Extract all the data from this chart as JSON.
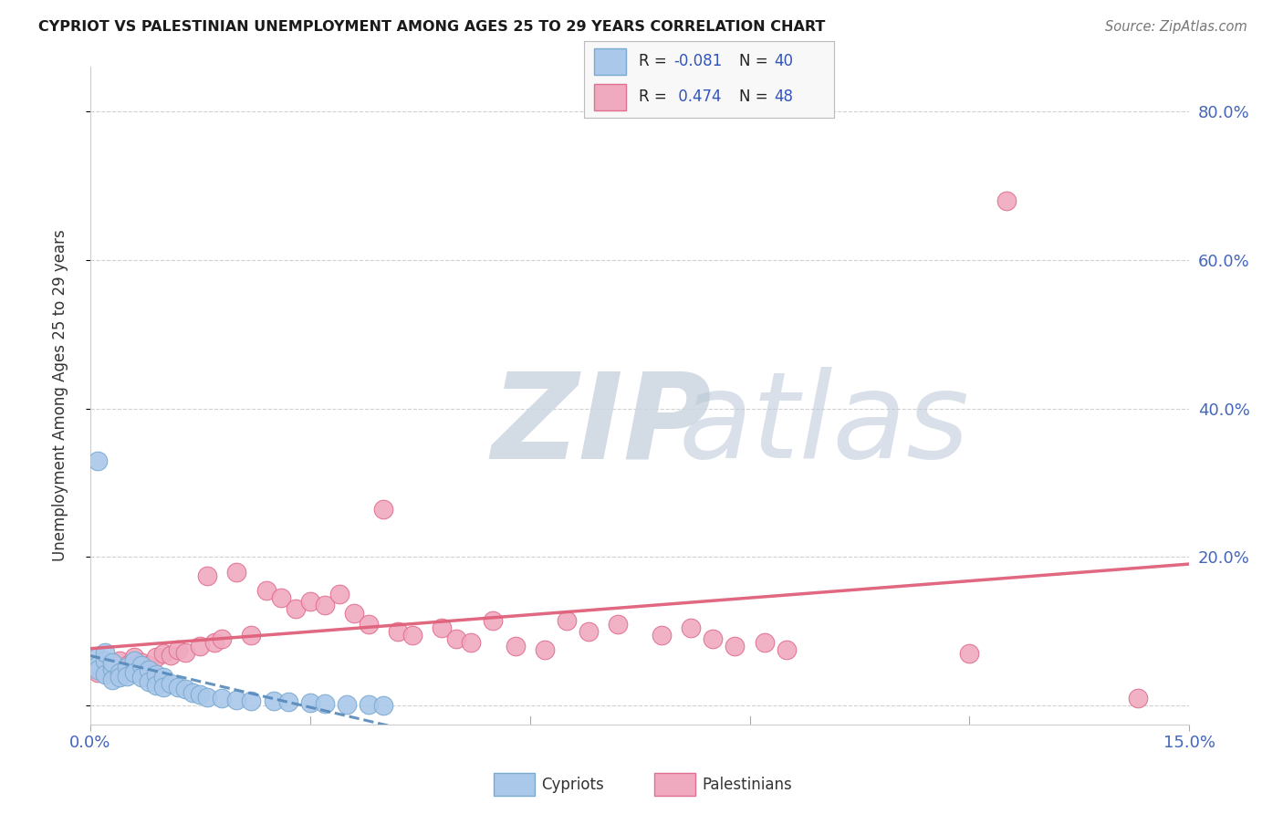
{
  "title": "CYPRIOT VS PALESTINIAN UNEMPLOYMENT AMONG AGES 25 TO 29 YEARS CORRELATION CHART",
  "source": "Source: ZipAtlas.com",
  "ylabel": "Unemployment Among Ages 25 to 29 years",
  "x_range": [
    0.0,
    0.15
  ],
  "y_range": [
    -0.025,
    0.86
  ],
  "y_ticks": [
    0.0,
    0.2,
    0.4,
    0.6,
    0.8
  ],
  "y_tick_labels": [
    "",
    "20.0%",
    "40.0%",
    "60.0%",
    "80.0%"
  ],
  "x_tick_labels": [
    "0.0%",
    "15.0%"
  ],
  "cypriot_face": "#aac8ea",
  "cypriot_edge": "#7aaad0",
  "cypriot_line": "#5588bb",
  "palestinian_face": "#f0aabf",
  "palestinian_edge": "#e07090",
  "palestinian_line": "#e0607a",
  "bg_color": "#ffffff",
  "grid_color": "#cccccc",
  "title_color": "#1a1a1a",
  "tick_color": "#4466bb",
  "ylabel_color": "#333333",
  "legend_text_color": "#3355bb",
  "watermark_zip_color": "#ccd5e0",
  "watermark_atlas_color": "#bbc8d8",
  "cyp_x": [
    0.001,
    0.001,
    0.001,
    0.002,
    0.002,
    0.002,
    0.003,
    0.003,
    0.003,
    0.004,
    0.004,
    0.005,
    0.005,
    0.006,
    0.006,
    0.007,
    0.007,
    0.008,
    0.008,
    0.009,
    0.009,
    0.01,
    0.01,
    0.011,
    0.012,
    0.013,
    0.014,
    0.015,
    0.016,
    0.018,
    0.02,
    0.022,
    0.025,
    0.027,
    0.03,
    0.032,
    0.035,
    0.038,
    0.04,
    0.001
  ],
  "cyp_y": [
    0.065,
    0.055,
    0.048,
    0.06,
    0.072,
    0.042,
    0.05,
    0.058,
    0.035,
    0.045,
    0.038,
    0.052,
    0.04,
    0.06,
    0.045,
    0.055,
    0.038,
    0.048,
    0.032,
    0.042,
    0.028,
    0.038,
    0.025,
    0.03,
    0.025,
    0.022,
    0.018,
    0.015,
    0.012,
    0.01,
    0.008,
    0.007,
    0.006,
    0.005,
    0.004,
    0.003,
    0.002,
    0.002,
    0.001,
    0.33
  ],
  "pal_x": [
    0.001,
    0.002,
    0.003,
    0.004,
    0.005,
    0.006,
    0.007,
    0.008,
    0.009,
    0.01,
    0.011,
    0.012,
    0.013,
    0.015,
    0.016,
    0.017,
    0.018,
    0.02,
    0.022,
    0.024,
    0.026,
    0.028,
    0.03,
    0.032,
    0.034,
    0.036,
    0.038,
    0.04,
    0.042,
    0.044,
    0.048,
    0.05,
    0.052,
    0.055,
    0.058,
    0.062,
    0.065,
    0.068,
    0.072,
    0.078,
    0.082,
    0.085,
    0.088,
    0.092,
    0.095,
    0.12,
    0.125,
    0.143
  ],
  "pal_y": [
    0.045,
    0.055,
    0.05,
    0.06,
    0.055,
    0.065,
    0.058,
    0.055,
    0.065,
    0.07,
    0.068,
    0.075,
    0.072,
    0.08,
    0.175,
    0.085,
    0.09,
    0.18,
    0.095,
    0.155,
    0.145,
    0.13,
    0.14,
    0.135,
    0.15,
    0.125,
    0.11,
    0.265,
    0.1,
    0.095,
    0.105,
    0.09,
    0.085,
    0.115,
    0.08,
    0.075,
    0.115,
    0.1,
    0.11,
    0.095,
    0.105,
    0.09,
    0.08,
    0.085,
    0.075,
    0.07,
    0.68,
    0.01
  ]
}
